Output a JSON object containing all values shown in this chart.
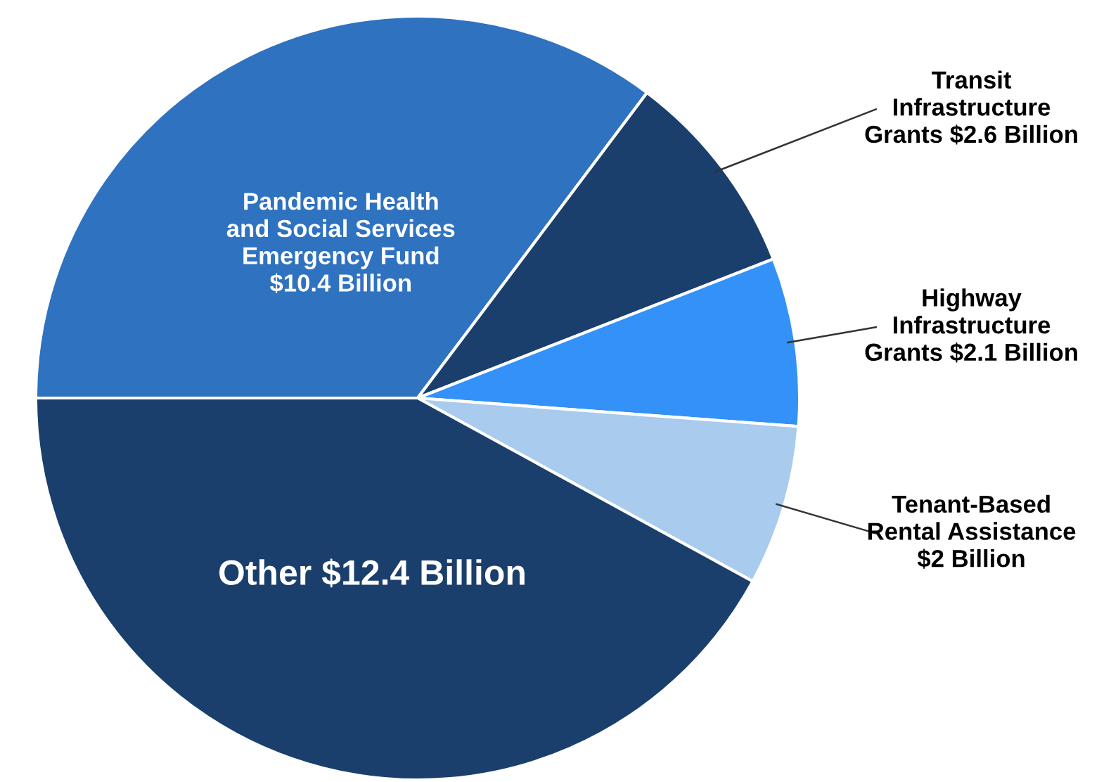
{
  "chart_data": {
    "type": "pie",
    "categories": [
      "Pandemic Health\nand Social Services\nEmergency Fund",
      "Transit\nInfrastructure\nGrants",
      "Highway\nInfrastructure\nGrants",
      "Tenant-Based\nRental Assistance",
      "Other"
    ],
    "values": [
      10.4,
      2.6,
      2.1,
      2,
      12.4
    ],
    "value_labels": [
      "$10.4 Billion",
      "$2.6 Billion",
      "$2.1 Billion",
      "$2 Billion",
      "$12.4 Billion"
    ],
    "colors": [
      "#2f72c0",
      "#1a3f6c",
      "#3391f7",
      "#a8cbee",
      "#1a3f6c"
    ]
  }
}
